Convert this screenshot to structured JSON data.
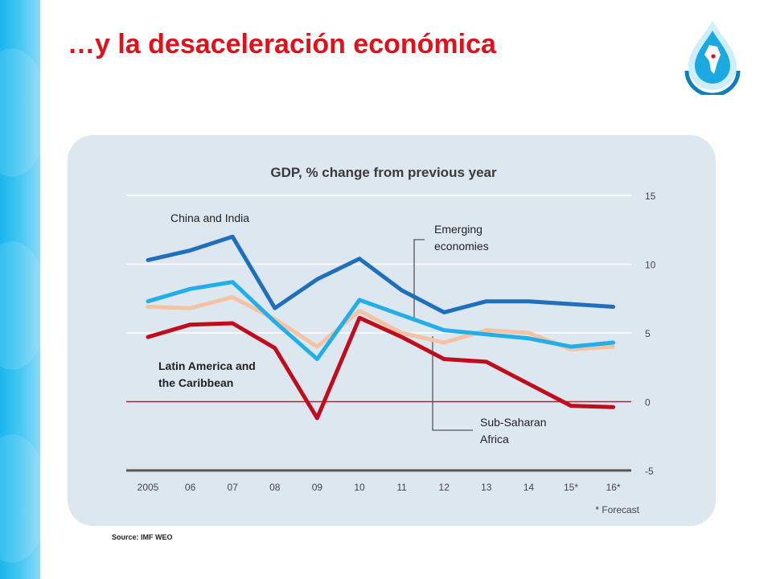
{
  "slide": {
    "title": "…y la desaceleración económica"
  },
  "logo": {
    "icon": "water-drop-globe-icon",
    "colors": [
      "#1aa9e0",
      "#0d7fbf",
      "#e3101b"
    ]
  },
  "source": "Source: IMF WEO",
  "chart_data": {
    "type": "line",
    "title": "GDP, % change from previous year",
    "categories": [
      "2005",
      "06",
      "07",
      "08",
      "09",
      "10",
      "11",
      "12",
      "13",
      "14",
      "15*",
      "16*"
    ],
    "ylim": [
      -5,
      15
    ],
    "yticks": [
      15,
      10,
      5,
      0,
      -5
    ],
    "grid": true,
    "footnote": "* Forecast",
    "series": [
      {
        "name": "China and India",
        "color": "#1f6fba",
        "values": [
          10.3,
          11.0,
          12.0,
          6.8,
          8.9,
          10.4,
          8.1,
          6.5,
          7.3,
          7.3,
          7.1,
          6.9
        ]
      },
      {
        "name": "Emerging economies",
        "color": "#22aee8",
        "values": [
          7.3,
          8.2,
          8.7,
          5.8,
          3.1,
          7.4,
          6.3,
          5.2,
          4.9,
          4.6,
          4.0,
          4.3
        ]
      },
      {
        "name": "Sub-Saharan Africa",
        "color": "#f4c3a3",
        "values": [
          6.9,
          6.8,
          7.6,
          6.0,
          4.0,
          6.6,
          5.0,
          4.3,
          5.2,
          5.0,
          3.8,
          4.0
        ]
      },
      {
        "name": "Latin America and the Caribbean",
        "color": "#c00d1e",
        "values": [
          4.7,
          5.6,
          5.7,
          3.9,
          -1.2,
          6.1,
          4.7,
          3.1,
          2.9,
          1.3,
          -0.3,
          -0.4
        ]
      }
    ],
    "labels": {
      "china_india": "China and India",
      "emerging_1": "Emerging",
      "emerging_2": "economies",
      "latam_1": "Latin America and",
      "latam_2": "the Caribbean",
      "ssa_1": "Sub-Saharan",
      "ssa_2": "Africa"
    },
    "zero_line_color": "#e3101b"
  }
}
